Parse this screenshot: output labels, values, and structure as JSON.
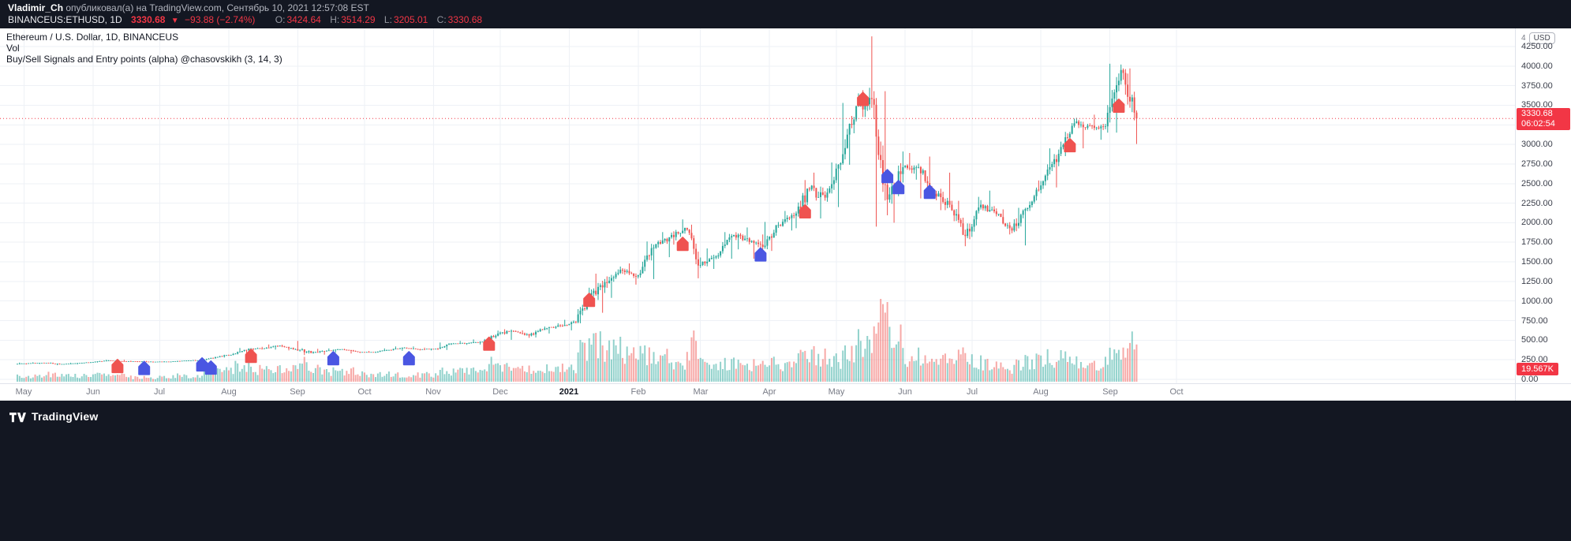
{
  "header": {
    "author": "Vladimir_Ch",
    "published": " опубликовал(а) на TradingView.com, Сентябрь 10, 2021 12:57:08 EST",
    "symbol": "BINANCEUS:ETHUSD, 1D",
    "last_price": "3330.68",
    "direction_arrow": "▼",
    "change": "−93.88 (−2.74%)",
    "ohlc": [
      {
        "label": "O:",
        "value": "3424.64"
      },
      {
        "label": "H:",
        "value": "3514.29"
      },
      {
        "label": "L:",
        "value": "3205.01"
      },
      {
        "label": "C:",
        "value": "3330.68"
      }
    ]
  },
  "legend": {
    "title": "Ethereum / U.S. Dollar, 1D, BINANCEUS",
    "volume_label": "Vol",
    "indicator_label": "Buy/Sell Signals and Entry points (alpha) @chasovskikh (3, 14, 3)"
  },
  "price_scale": {
    "unit_prefix": "4",
    "unit": "USD",
    "price_badge": {
      "price": "3330.68",
      "countdown": "06:02:54"
    },
    "volume_badge": "19.567K"
  },
  "footer": {
    "brand": "TradingView"
  },
  "colors": {
    "up": "#26a69a",
    "down": "#ef5350",
    "vol_up": "rgba(38,166,154,0.5)",
    "vol_down": "rgba(239,83,80,0.5)",
    "sell": "#ef5350",
    "buy": "#4a56e2",
    "accent": "#f23645",
    "grid": "#eef1f6"
  },
  "chart_data": {
    "type": "candlestick",
    "title": "Ethereum / U.S. Dollar, 1D, BINANCEUS",
    "symbol": "BINANCEUS:ETHUSD",
    "interval": "1D",
    "current_price": 3330.68,
    "current_volume_k": 19.567,
    "y_axis": {
      "min": 0,
      "max": 4250,
      "step": 250
    },
    "x_axis": {
      "months": [
        {
          "label": "May",
          "day": 3
        },
        {
          "label": "Jun",
          "day": 34
        },
        {
          "label": "Jul",
          "day": 64
        },
        {
          "label": "Aug",
          "day": 95
        },
        {
          "label": "Sep",
          "day": 126
        },
        {
          "label": "Oct",
          "day": 156
        },
        {
          "label": "Nov",
          "day": 187
        },
        {
          "label": "Dec",
          "day": 217
        },
        {
          "label": "2021",
          "day": 248,
          "major": true
        },
        {
          "label": "Feb",
          "day": 279
        },
        {
          "label": "Mar",
          "day": 307
        },
        {
          "label": "Apr",
          "day": 338
        },
        {
          "label": "May",
          "day": 368
        },
        {
          "label": "Jun",
          "day": 399
        },
        {
          "label": "Jul",
          "day": 429
        },
        {
          "label": "Aug",
          "day": 460
        },
        {
          "label": "Sep",
          "day": 491
        },
        {
          "label": "Oct",
          "day": 521
        }
      ]
    },
    "weekly_ohlcv_note": "approximate weekly [open,high,low,close,avg-daily-volume-K] read from chart, Apr 2020 - Sep 2021",
    "weekly_ohlcv": [
      [
        196,
        215,
        190,
        206,
        4
      ],
      [
        206,
        218,
        195,
        210,
        4
      ],
      [
        210,
        215,
        180,
        195,
        5
      ],
      [
        195,
        212,
        190,
        207,
        4
      ],
      [
        207,
        222,
        200,
        220,
        4
      ],
      [
        220,
        250,
        215,
        240,
        5
      ],
      [
        240,
        250,
        225,
        231,
        4
      ],
      [
        231,
        238,
        220,
        228,
        3
      ],
      [
        228,
        235,
        215,
        225,
        3
      ],
      [
        225,
        232,
        219,
        227,
        3
      ],
      [
        227,
        242,
        224,
        239,
        4
      ],
      [
        239,
        248,
        230,
        245,
        4
      ],
      [
        245,
        290,
        241,
        285,
        7
      ],
      [
        285,
        335,
        278,
        322,
        9
      ],
      [
        322,
        400,
        315,
        390,
        10
      ],
      [
        390,
        415,
        360,
        395,
        8
      ],
      [
        395,
        445,
        380,
        430,
        8
      ],
      [
        430,
        442,
        370,
        385,
        8
      ],
      [
        385,
        490,
        310,
        335,
        12
      ],
      [
        335,
        390,
        315,
        365,
        9
      ],
      [
        365,
        395,
        340,
        385,
        7
      ],
      [
        385,
        390,
        330,
        350,
        7
      ],
      [
        350,
        362,
        335,
        345,
        5
      ],
      [
        345,
        395,
        340,
        375,
        5
      ],
      [
        375,
        420,
        365,
        405,
        5
      ],
      [
        405,
        420,
        370,
        383,
        5
      ],
      [
        383,
        405,
        370,
        390,
        5
      ],
      [
        390,
        470,
        375,
        455,
        7
      ],
      [
        455,
        490,
        440,
        462,
        7
      ],
      [
        462,
        510,
        445,
        480,
        7
      ],
      [
        480,
        622,
        472,
        585,
        12
      ],
      [
        585,
        640,
        505,
        615,
        9
      ],
      [
        615,
        625,
        530,
        560,
        8
      ],
      [
        560,
        675,
        535,
        650,
        9
      ],
      [
        650,
        715,
        585,
        685,
        9
      ],
      [
        685,
        760,
        625,
        730,
        10
      ],
      [
        730,
        1170,
        716,
        1100,
        22
      ],
      [
        1100,
        1350,
        850,
        1230,
        25
      ],
      [
        1230,
        1440,
        1040,
        1390,
        22
      ],
      [
        1390,
        1480,
        1210,
        1330,
        20
      ],
      [
        1330,
        1760,
        1280,
        1680,
        18
      ],
      [
        1680,
        1880,
        1560,
        1815,
        16
      ],
      [
        1815,
        2042,
        1720,
        1935,
        15
      ],
      [
        1935,
        1975,
        1290,
        1460,
        26
      ],
      [
        1460,
        1672,
        1410,
        1570,
        14
      ],
      [
        1570,
        1880,
        1540,
        1830,
        14
      ],
      [
        1830,
        1940,
        1660,
        1800,
        12
      ],
      [
        1800,
        1850,
        1540,
        1690,
        12
      ],
      [
        1690,
        2010,
        1640,
        1970,
        12
      ],
      [
        1970,
        2150,
        1900,
        2090,
        13
      ],
      [
        2090,
        2545,
        1930,
        2425,
        16
      ],
      [
        2425,
        2640,
        2055,
        2320,
        18
      ],
      [
        2320,
        2770,
        2200,
        2760,
        15
      ],
      [
        2760,
        3530,
        2740,
        3490,
        20
      ],
      [
        3490,
        4380,
        3350,
        3580,
        28
      ],
      [
        3580,
        3680,
        1950,
        2295,
        48
      ],
      [
        2295,
        2910,
        2000,
        2710,
        30
      ],
      [
        2710,
        2890,
        2550,
        2710,
        18
      ],
      [
        2710,
        2845,
        2310,
        2370,
        18
      ],
      [
        2370,
        2640,
        2160,
        2230,
        15
      ],
      [
        2230,
        2280,
        1700,
        1830,
        20
      ],
      [
        1830,
        2330,
        1790,
        2230,
        14
      ],
      [
        2230,
        2410,
        2080,
        2110,
        11
      ],
      [
        2110,
        2170,
        1850,
        1900,
        10
      ],
      [
        1900,
        2190,
        1710,
        2190,
        13
      ],
      [
        2190,
        2540,
        2150,
        2530,
        14
      ],
      [
        2530,
        2950,
        2450,
        2880,
        16
      ],
      [
        2880,
        3330,
        2850,
        3270,
        17
      ],
      [
        3270,
        3340,
        2950,
        3240,
        14
      ],
      [
        3240,
        3380,
        3060,
        3230,
        12
      ],
      [
        3230,
        4030,
        3150,
        3950,
        18
      ],
      [
        3950,
        3970,
        3005,
        3330,
        26
      ]
    ],
    "markers": [
      {
        "day": 45,
        "price": 165,
        "type": "sell"
      },
      {
        "day": 57,
        "price": 140,
        "type": "buy"
      },
      {
        "day": 83,
        "price": 185,
        "type": "buy"
      },
      {
        "day": 87,
        "price": 145,
        "type": "buy"
      },
      {
        "day": 105,
        "price": 295,
        "type": "sell"
      },
      {
        "day": 142,
        "price": 265,
        "type": "buy"
      },
      {
        "day": 176,
        "price": 265,
        "type": "buy"
      },
      {
        "day": 212,
        "price": 450,
        "type": "sell"
      },
      {
        "day": 257,
        "price": 1010,
        "type": "sell"
      },
      {
        "day": 299,
        "price": 1725,
        "type": "sell"
      },
      {
        "day": 334,
        "price": 1590,
        "type": "buy"
      },
      {
        "day": 354,
        "price": 2140,
        "type": "sell"
      },
      {
        "day": 380,
        "price": 3575,
        "type": "sell"
      },
      {
        "day": 391,
        "price": 2590,
        "type": "buy"
      },
      {
        "day": 396,
        "price": 2450,
        "type": "buy"
      },
      {
        "day": 410,
        "price": 2390,
        "type": "buy"
      },
      {
        "day": 473,
        "price": 2985,
        "type": "sell"
      },
      {
        "day": 495,
        "price": 3490,
        "type": "sell"
      }
    ]
  }
}
